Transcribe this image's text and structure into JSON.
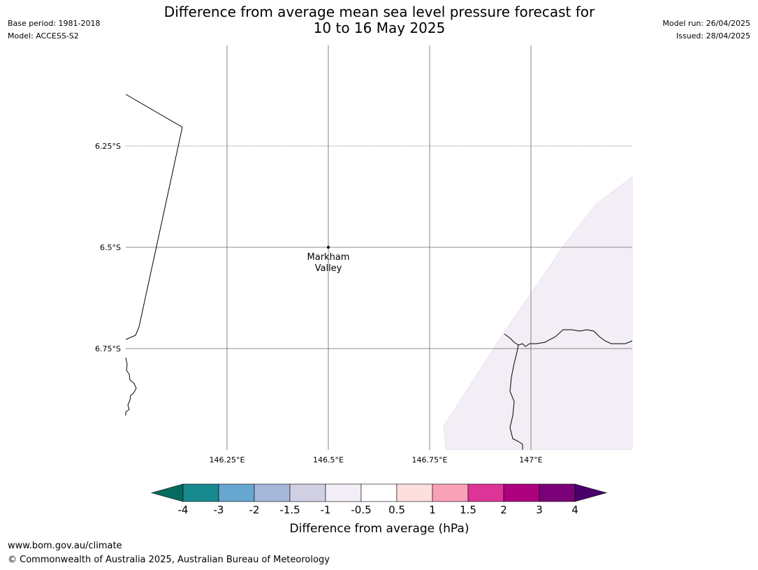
{
  "header": {
    "base_period": "Base period: 1981-2018",
    "model": "Model: ACCESS-S2",
    "title_line1": "Difference from average mean sea level pressure forecast for",
    "title_line2": "10 to 16 May 2025",
    "model_run": "Model run: 26/04/2025",
    "issued": "Issued: 28/04/2025"
  },
  "map": {
    "lat_labels": [
      "6.25°S",
      "6.5°S",
      "6.75°S"
    ],
    "lon_labels": [
      "146.25°E",
      "146.5°E",
      "146.75°E",
      "147°E"
    ],
    "place": {
      "name_line1": "Markham",
      "name_line2": "Valley"
    },
    "shaded_region_color": "#f3edf6",
    "shaded_region_category": "-1 to -0.5"
  },
  "colorbar": {
    "ticks": [
      "-4",
      "-3",
      "-2",
      "-1.5",
      "-1",
      "-0.5",
      "0.5",
      "1",
      "1.5",
      "2",
      "3",
      "4"
    ],
    "colors": [
      "#18898e",
      "#67a6cf",
      "#a6b7da",
      "#d0cfe4",
      "#f3edf6",
      "#ffffff",
      "#fde0dd",
      "#f8a1b9",
      "#dd3497",
      "#ae017e",
      "#7a0177"
    ],
    "low_extend_color": "#056b5e",
    "high_extend_color": "#49006a",
    "label": "Difference from average (hPa)"
  },
  "footer": {
    "url": "www.bom.gov.au/climate",
    "copyright": "© Commonwealth of Australia 2025, Australian Bureau of Meteorology"
  }
}
